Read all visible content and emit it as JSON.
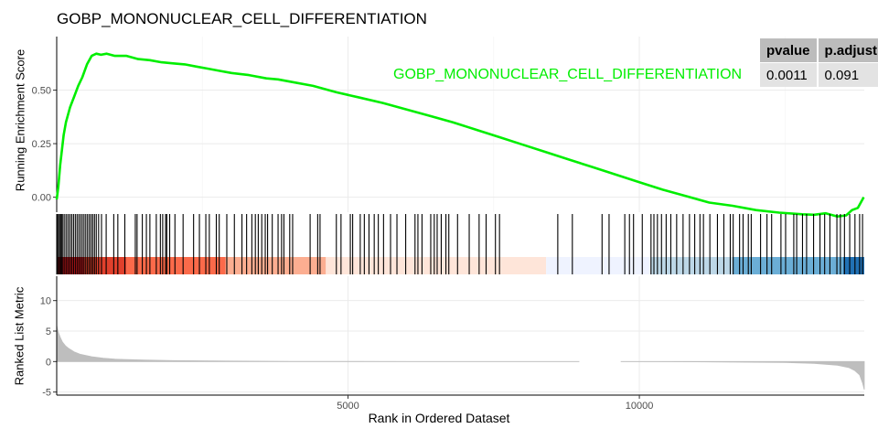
{
  "title": "GOBP_MONONUCLEAR_CELL_DIFFERENTIATION",
  "gene_set_label": "GOBP_MONONUCLEAR_CELL_DIFFERENTIATION",
  "line_color": "#00ee00",
  "stats_table": {
    "headers": [
      "pvalue",
      "p.adjust"
    ],
    "values": [
      "0.0011",
      "0.091"
    ]
  },
  "chart_data": {
    "type": "line",
    "panels": [
      {
        "name": "running-enrichment",
        "ylabel": "Running Enrichment Score",
        "yticks": [
          0.0,
          0.25,
          0.5
        ],
        "ytick_labels": [
          "0.00",
          "0.25",
          "0.50"
        ],
        "ylim": [
          -0.07,
          0.75
        ],
        "grid": true,
        "series": [
          {
            "x": [
              1,
              30,
              60,
              120,
              160,
              230,
              300,
              370,
              440,
              520,
              600,
              680,
              760,
              860,
              1000,
              1200,
              1400,
              1600,
              1800,
              2000,
              2200,
              2400,
              2600,
              2800,
              3000,
              3300,
              3600,
              3800,
              4000,
              4400,
              4800,
              5200,
              5600,
              6000,
              6400,
              6800,
              7200,
              7600,
              8000,
              8400,
              8800,
              9200,
              9600,
              10000,
              10400,
              10800,
              11200,
              11600,
              12000,
              12400,
              12800,
              13000,
              13200,
              13400,
              13550,
              13650,
              13750,
              13850
            ],
            "y": [
              -0.01,
              0.05,
              0.15,
              0.29,
              0.35,
              0.42,
              0.47,
              0.52,
              0.56,
              0.62,
              0.66,
              0.67,
              0.665,
              0.67,
              0.66,
              0.66,
              0.645,
              0.64,
              0.63,
              0.625,
              0.62,
              0.61,
              0.6,
              0.59,
              0.58,
              0.57,
              0.555,
              0.55,
              0.54,
              0.52,
              0.49,
              0.465,
              0.44,
              0.41,
              0.38,
              0.35,
              0.315,
              0.28,
              0.245,
              0.21,
              0.175,
              0.14,
              0.105,
              0.07,
              0.035,
              0.005,
              -0.025,
              -0.04,
              -0.06,
              -0.072,
              -0.08,
              -0.082,
              -0.075,
              -0.09,
              -0.085,
              -0.06,
              -0.05,
              0.0
            ]
          }
        ]
      },
      {
        "name": "hits",
        "hit_positions": [
          10,
          30,
          50,
          70,
          90,
          110,
          140,
          170,
          200,
          230,
          260,
          290,
          320,
          350,
          380,
          410,
          440,
          470,
          500,
          530,
          560,
          590,
          620,
          650,
          680,
          720,
          770,
          850,
          980,
          1050,
          1170,
          1350,
          1380,
          1470,
          1540,
          1600,
          1710,
          1780,
          1820,
          1870,
          1890,
          1940,
          2030,
          2170,
          2350,
          2450,
          2560,
          2620,
          2740,
          2790,
          2920,
          3050,
          3180,
          3260,
          3350,
          3410,
          3460,
          3520,
          3580,
          3620,
          3700,
          3800,
          3860,
          3900,
          4000,
          4050,
          4350,
          4480,
          4520,
          4800,
          4880,
          5040,
          5080,
          5210,
          5280,
          5360,
          5450,
          5520,
          5610,
          5730,
          5840,
          5990,
          6150,
          6200,
          6270,
          6420,
          6480,
          6530,
          6600,
          6680,
          6730,
          6880,
          7080,
          7250,
          7370,
          7530,
          7600,
          8600,
          8850,
          9360,
          9480,
          9750,
          9830,
          9900,
          10050,
          10200,
          10250,
          10310,
          10380,
          10460,
          10540,
          10640,
          10750,
          10860,
          10950,
          11040,
          11100,
          11210,
          11340,
          11450,
          11560,
          11610,
          11720,
          11780,
          11870,
          11920,
          12080,
          12190,
          12270,
          12430,
          12510,
          12650,
          12700,
          12800,
          12870,
          12990,
          13100,
          13180,
          13270,
          13390,
          13450,
          13520,
          13610,
          13700,
          13780,
          13830
        ]
      },
      {
        "name": "ranked-list",
        "ylabel": "Ranked List Metric",
        "yticks": [
          -5,
          0,
          5,
          10
        ],
        "ytick_labels": [
          "-5",
          "0",
          "5",
          "10"
        ],
        "ylim": [
          -5.5,
          14
        ],
        "grid": true,
        "x": [
          1,
          10,
          30,
          60,
          100,
          150,
          200,
          300,
          400,
          600,
          800,
          1000,
          1500,
          2000,
          3000,
          4000,
          5000,
          6000,
          7000,
          8000,
          8800,
          9500,
          10500,
          11500,
          12500,
          13000,
          13400,
          13600,
          13700,
          13780,
          13830,
          13860
        ],
        "values": [
          6.0,
          5.5,
          4.8,
          4.0,
          3.2,
          2.6,
          2.2,
          1.6,
          1.2,
          0.8,
          0.55,
          0.4,
          0.25,
          0.15,
          0.08,
          0.04,
          0.02,
          0.01,
          0.0,
          0.0,
          0.0,
          -0.01,
          -0.03,
          -0.07,
          -0.15,
          -0.3,
          -0.6,
          -1.0,
          -1.5,
          -2.2,
          -3.5,
          -4.6
        ],
        "gap": [
          8970,
          9680
        ]
      }
    ],
    "xlabel": "Rank in Ordered Dataset",
    "xticks": [
      5000,
      10000
    ],
    "xtick_labels": [
      "5000",
      "10000"
    ],
    "xlim": [
      1,
      13860
    ]
  }
}
